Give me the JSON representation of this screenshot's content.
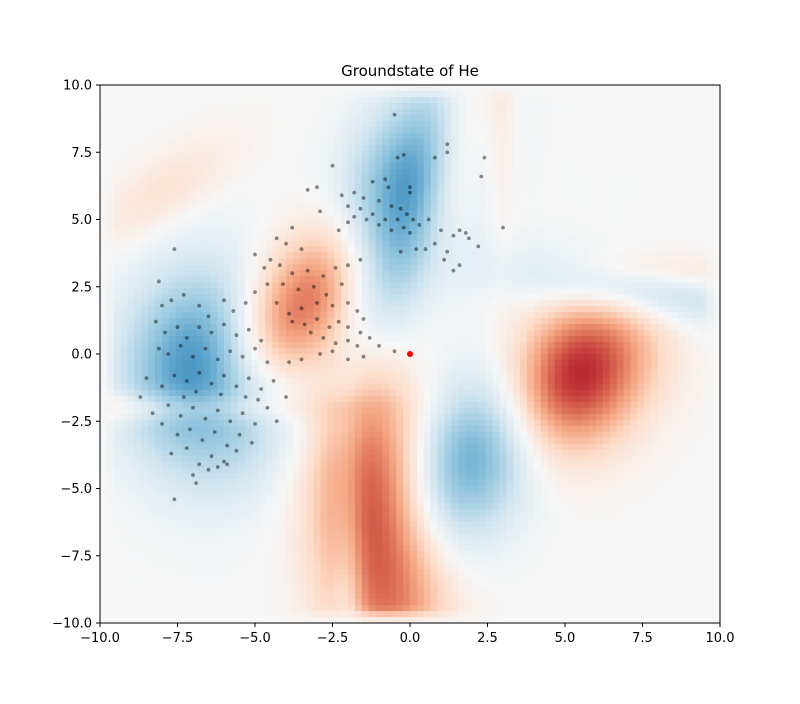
{
  "chart_data": {
    "type": "heatmap",
    "title": "Groundstate of He",
    "xlabel": "",
    "ylabel": "",
    "xlim": [
      -10,
      10
    ],
    "ylim": [
      -10,
      10
    ],
    "x_ticks": [
      -10,
      -7.5,
      -5,
      -2.5,
      0,
      2.5,
      5,
      7.5,
      10
    ],
    "y_ticks": [
      -10,
      -7.5,
      -5,
      -2.5,
      0,
      2.5,
      5,
      7.5,
      10
    ],
    "x_tick_labels": [
      "−10.0",
      "−7.5",
      "−5.0",
      "−2.5",
      "0.0",
      "2.5",
      "5.0",
      "7.5",
      "10.0"
    ],
    "y_tick_labels": [
      "−10.0",
      "−7.5",
      "−5.0",
      "−2.5",
      "0.0",
      "2.5",
      "5.0",
      "7.5",
      "10.0"
    ],
    "grid": false,
    "colormap": "RdBu",
    "colors": {
      "positive": "#67001f",
      "negative": "#053061",
      "neutral": "#f7f7f7",
      "samples": "#000000",
      "origin": "#ff0000"
    },
    "lobes": [
      {
        "sign": 1,
        "amplitude": 1.0,
        "center": [
          5.0,
          -0.8
        ],
        "spread": [
          1.6,
          2.2
        ],
        "angle_deg": -30
      },
      {
        "sign": -1,
        "amplitude": 0.8,
        "center": [
          -0.5,
          4.9
        ],
        "spread": [
          1.4,
          3.4
        ],
        "angle_deg": -20
      },
      {
        "sign": 1,
        "amplitude": 0.75,
        "center": [
          -3.2,
          2.0
        ],
        "spread": [
          1.3,
          3.0
        ],
        "angle_deg": -35
      },
      {
        "sign": -1,
        "amplitude": 0.7,
        "center": [
          -6.5,
          -0.8
        ],
        "spread": [
          1.8,
          2.6
        ],
        "angle_deg": 0
      },
      {
        "sign": -1,
        "amplitude": 0.65,
        "center": [
          2.5,
          -3.0
        ],
        "spread": [
          1.5,
          3.4
        ],
        "angle_deg": -30
      },
      {
        "sign": 1,
        "amplitude": 0.75,
        "center": [
          -1.0,
          -6.5
        ],
        "spread": [
          1.4,
          4.2
        ],
        "angle_deg": 5
      },
      {
        "sign": 1,
        "amplitude": 0.3,
        "center": [
          1.5,
          7.0
        ],
        "spread": [
          0.7,
          3.0
        ],
        "angle_deg": -10
      },
      {
        "sign": -1,
        "amplitude": 0.3,
        "center": [
          7.3,
          2.5
        ],
        "spread": [
          0.8,
          3.0
        ],
        "angle_deg": 80
      },
      {
        "sign": 1,
        "amplitude": 0.18,
        "center": [
          9.0,
          3.0
        ],
        "spread": [
          0.5,
          3.0
        ],
        "angle_deg": 85
      },
      {
        "sign": 1,
        "amplitude": 0.18,
        "center": [
          -9.6,
          -2.0
        ],
        "spread": [
          0.4,
          4.5
        ],
        "angle_deg": 90
      },
      {
        "sign": -1,
        "amplitude": 0.2,
        "center": [
          -2.0,
          -9.6
        ],
        "spread": [
          0.35,
          5.0
        ],
        "angle_deg": 0
      },
      {
        "sign": 1,
        "amplitude": 0.15,
        "center": [
          -8.0,
          6.0
        ],
        "spread": [
          0.8,
          2.0
        ],
        "angle_deg": -50
      },
      {
        "sign": 1,
        "amplitude": 0.12,
        "center": [
          3.0,
          9.4
        ],
        "spread": [
          0.35,
          4.0
        ],
        "angle_deg": 0
      }
    ],
    "origin_point": [
      0,
      0
    ],
    "samples": [
      [
        -0.5,
        8.9
      ],
      [
        1.2,
        7.8
      ],
      [
        1.2,
        7.5
      ],
      [
        -0.2,
        7.4
      ],
      [
        0.8,
        7.3
      ],
      [
        2.4,
        7.3
      ],
      [
        -0.4,
        7.3
      ],
      [
        2.3,
        6.6
      ],
      [
        -2.5,
        7.0
      ],
      [
        -1.2,
        6.4
      ],
      [
        -0.8,
        6.5
      ],
      [
        -0.7,
        6.2
      ],
      [
        0.0,
        6.2
      ],
      [
        0.0,
        6.0
      ],
      [
        -3.3,
        6.1
      ],
      [
        -3.0,
        6.2
      ],
      [
        -2.2,
        5.9
      ],
      [
        -1.8,
        6.0
      ],
      [
        -1.5,
        5.8
      ],
      [
        -1.0,
        5.7
      ],
      [
        -0.6,
        5.5
      ],
      [
        -0.3,
        5.4
      ],
      [
        -2.0,
        5.5
      ],
      [
        -1.6,
        5.4
      ],
      [
        -1.2,
        5.2
      ],
      [
        -0.8,
        5.0
      ],
      [
        -0.4,
        5.0
      ],
      [
        -0.1,
        5.2
      ],
      [
        0.1,
        5.0
      ],
      [
        0.3,
        4.8
      ],
      [
        0.6,
        5.0
      ],
      [
        1.0,
        4.6
      ],
      [
        -1.8,
        5.1
      ],
      [
        -1.4,
        5.0
      ],
      [
        -1.0,
        4.8
      ],
      [
        -0.6,
        4.6
      ],
      [
        -0.2,
        4.7
      ],
      [
        0.0,
        4.5
      ],
      [
        1.4,
        4.4
      ],
      [
        1.6,
        4.6
      ],
      [
        1.9,
        4.3
      ],
      [
        3.0,
        4.7
      ],
      [
        1.8,
        4.5
      ],
      [
        2.2,
        4.0
      ],
      [
        0.8,
        4.1
      ],
      [
        0.5,
        3.9
      ],
      [
        1.2,
        3.8
      ],
      [
        1.1,
        3.5
      ],
      [
        0.2,
        3.9
      ],
      [
        -0.3,
        3.8
      ],
      [
        1.4,
        3.1
      ],
      [
        1.6,
        3.3
      ],
      [
        -2.9,
        5.3
      ],
      [
        -2.3,
        4.6
      ],
      [
        -2.0,
        4.9
      ],
      [
        -1.6,
        3.5
      ],
      [
        -3.8,
        4.7
      ],
      [
        -4.3,
        4.3
      ],
      [
        -4.0,
        4.1
      ],
      [
        -3.5,
        3.9
      ],
      [
        -4.5,
        3.5
      ],
      [
        -5.0,
        3.7
      ],
      [
        -4.7,
        3.2
      ],
      [
        -4.2,
        3.3
      ],
      [
        -3.8,
        3.0
      ],
      [
        -3.3,
        3.1
      ],
      [
        -2.8,
        2.9
      ],
      [
        -2.4,
        3.2
      ],
      [
        -2.0,
        3.3
      ],
      [
        -4.6,
        2.6
      ],
      [
        -4.1,
        2.6
      ],
      [
        -3.6,
        2.4
      ],
      [
        -3.1,
        2.5
      ],
      [
        -2.7,
        2.2
      ],
      [
        -2.2,
        2.6
      ],
      [
        -5.0,
        2.3
      ],
      [
        -4.3,
        1.9
      ],
      [
        -3.9,
        1.5
      ],
      [
        -3.5,
        1.7
      ],
      [
        -3.0,
        1.9
      ],
      [
        -2.5,
        1.8
      ],
      [
        -2.0,
        1.9
      ],
      [
        -1.7,
        1.6
      ],
      [
        -3.8,
        1.2
      ],
      [
        -3.4,
        1.1
      ],
      [
        -3.0,
        1.3
      ],
      [
        -2.6,
        1.0
      ],
      [
        -2.3,
        1.2
      ],
      [
        -2.0,
        1.0
      ],
      [
        -1.6,
        0.8
      ],
      [
        -1.3,
        0.6
      ],
      [
        -1.5,
        1.3
      ],
      [
        -3.2,
        0.8
      ],
      [
        -2.8,
        0.6
      ],
      [
        -2.4,
        0.4
      ],
      [
        -2.0,
        0.5
      ],
      [
        -1.7,
        0.3
      ],
      [
        -1.0,
        0.3
      ],
      [
        -0.5,
        0.1
      ],
      [
        -3.9,
        -0.3
      ],
      [
        -3.5,
        -0.2
      ],
      [
        -2.9,
        0.0
      ],
      [
        -2.5,
        0.1
      ],
      [
        -2.0,
        -0.2
      ],
      [
        -1.5,
        -0.1
      ],
      [
        -8.1,
        2.7
      ],
      [
        -7.6,
        3.9
      ],
      [
        -8.0,
        1.8
      ],
      [
        -7.7,
        2.0
      ],
      [
        -7.3,
        2.2
      ],
      [
        -6.8,
        1.8
      ],
      [
        -6.5,
        1.4
      ],
      [
        -6.0,
        2.0
      ],
      [
        -5.7,
        1.6
      ],
      [
        -5.3,
        1.9
      ],
      [
        -8.2,
        1.2
      ],
      [
        -7.9,
        0.8
      ],
      [
        -7.5,
        1.0
      ],
      [
        -7.2,
        0.6
      ],
      [
        -6.8,
        1.0
      ],
      [
        -6.4,
        0.8
      ],
      [
        -6.0,
        1.1
      ],
      [
        -5.6,
        0.7
      ],
      [
        -5.2,
        0.9
      ],
      [
        -4.8,
        0.5
      ],
      [
        -8.1,
        0.2
      ],
      [
        -7.8,
        0.0
      ],
      [
        -7.4,
        0.3
      ],
      [
        -7.0,
        -0.1
      ],
      [
        -6.6,
        0.2
      ],
      [
        -6.2,
        -0.2
      ],
      [
        -5.8,
        0.1
      ],
      [
        -5.4,
        -0.1
      ],
      [
        -5.0,
        0.2
      ],
      [
        -4.6,
        -0.3
      ],
      [
        -8.5,
        -0.9
      ],
      [
        -8.0,
        -1.2
      ],
      [
        -7.6,
        -0.8
      ],
      [
        -7.2,
        -1.0
      ],
      [
        -6.8,
        -0.7
      ],
      [
        -6.4,
        -1.1
      ],
      [
        -6.0,
        -0.8
      ],
      [
        -5.6,
        -1.2
      ],
      [
        -5.2,
        -0.9
      ],
      [
        -4.8,
        -1.3
      ],
      [
        -4.4,
        -1.0
      ],
      [
        -4.0,
        -1.6
      ],
      [
        -8.7,
        -1.6
      ],
      [
        -8.3,
        -2.2
      ],
      [
        -7.8,
        -1.9
      ],
      [
        -7.4,
        -2.3
      ],
      [
        -7.0,
        -2.0
      ],
      [
        -6.6,
        -2.4
      ],
      [
        -6.2,
        -2.1
      ],
      [
        -5.8,
        -2.5
      ],
      [
        -5.4,
        -2.2
      ],
      [
        -5.0,
        -2.6
      ],
      [
        -4.6,
        -2.0
      ],
      [
        -8.0,
        -2.6
      ],
      [
        -7.5,
        -3.0
      ],
      [
        -7.1,
        -2.8
      ],
      [
        -6.7,
        -3.2
      ],
      [
        -6.3,
        -2.9
      ],
      [
        -5.9,
        -3.4
      ],
      [
        -5.5,
        -3.0
      ],
      [
        -5.1,
        -3.3
      ],
      [
        -7.7,
        -3.7
      ],
      [
        -7.2,
        -3.5
      ],
      [
        -6.8,
        -4.1
      ],
      [
        -6.4,
        -3.8
      ],
      [
        -6.0,
        -4.0
      ],
      [
        -5.6,
        -3.6
      ],
      [
        -7.0,
        -4.5
      ],
      [
        -6.5,
        -4.3
      ],
      [
        -7.6,
        -5.4
      ],
      [
        -6.9,
        -4.8
      ],
      [
        -6.2,
        -4.2
      ],
      [
        -5.9,
        -4.1
      ],
      [
        -4.9,
        -1.7
      ],
      [
        -4.3,
        -2.5
      ],
      [
        -5.3,
        -1.6
      ],
      [
        -6.1,
        -1.5
      ],
      [
        -6.9,
        -1.4
      ],
      [
        -7.3,
        -1.6
      ]
    ]
  }
}
